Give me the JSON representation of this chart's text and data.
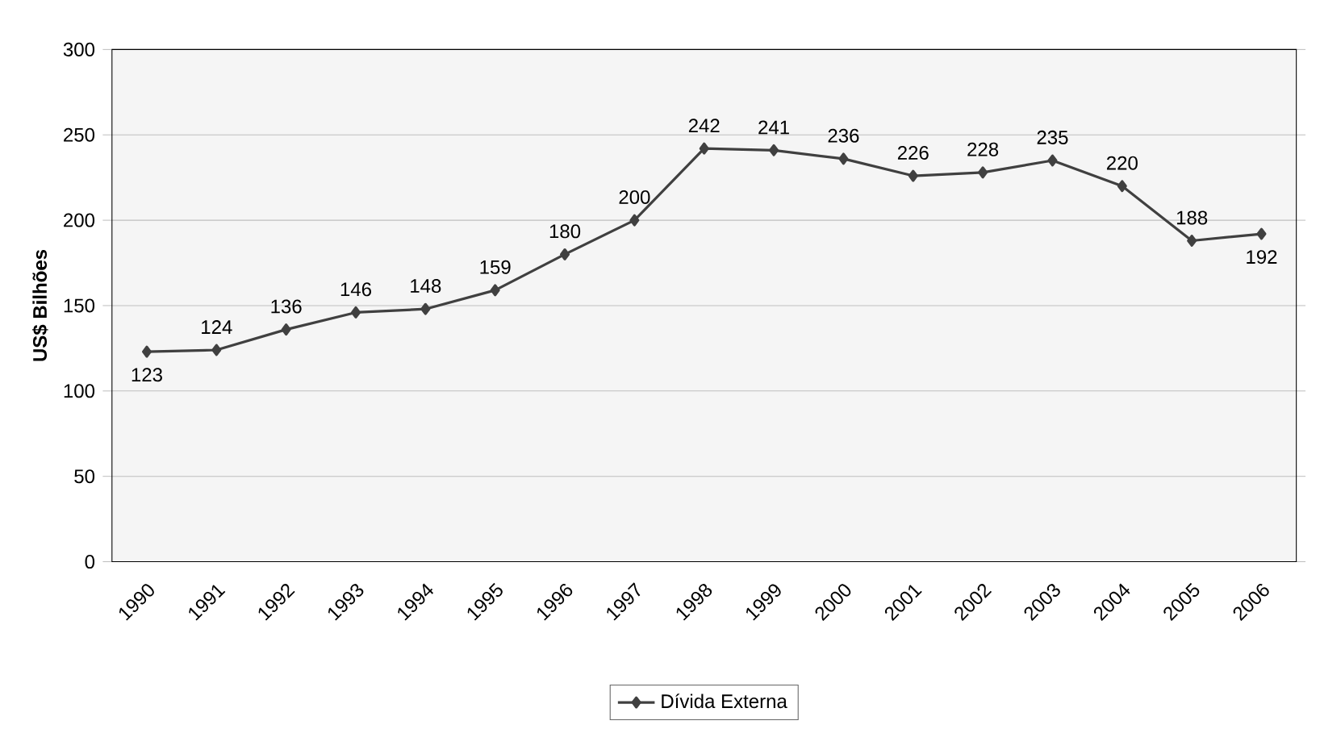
{
  "chart_data": {
    "type": "line",
    "ylabel": "US$ Bilhões",
    "categories": [
      "1990",
      "1991",
      "1992",
      "1993",
      "1994",
      "1995",
      "1996",
      "1997",
      "1998",
      "1999",
      "2000",
      "2001",
      "2002",
      "2003",
      "2004",
      "2005",
      "2006"
    ],
    "series": [
      {
        "name": "Dívida Externa",
        "color": "#404040",
        "values": [
          123,
          124,
          136,
          146,
          148,
          159,
          180,
          200,
          242,
          241,
          236,
          226,
          228,
          235,
          220,
          188,
          192
        ]
      }
    ],
    "ylim": [
      0,
      300
    ],
    "yticks": [
      0,
      50,
      100,
      150,
      200,
      250,
      300
    ],
    "grid": "y",
    "legend": "bottom",
    "marker": "diamond",
    "line_style": "solid",
    "data_labels": true
  }
}
